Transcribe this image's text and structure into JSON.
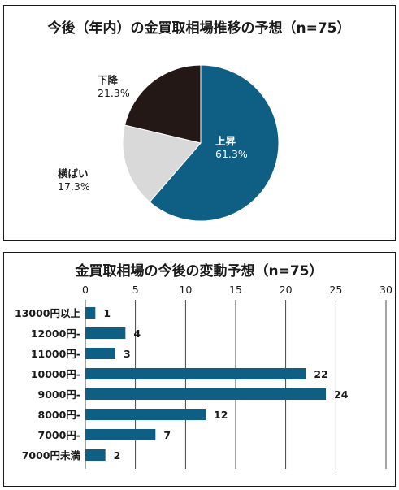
{
  "chart_data": [
    {
      "type": "pie",
      "title": "今後（年内）の金買取相場推移の予想（n=75）",
      "slices": [
        {
          "label": "上昇",
          "value": 61.3,
          "value_label": "61.3%",
          "color": "#0f5f84",
          "text_color": "#ffffff"
        },
        {
          "label": "横ばい",
          "value": 17.3,
          "value_label": "17.3%",
          "color": "#d9d9d9",
          "text_color": "#1a1a1a"
        },
        {
          "label": "下降",
          "value": 21.3,
          "value_label": "21.3%",
          "color": "#231815",
          "text_color": "#1a1a1a"
        }
      ]
    },
    {
      "type": "bar",
      "orientation": "horizontal",
      "title": "金買取相場の今後の変動予想（n=75）",
      "categories": [
        "13000円以上",
        "12000円-",
        "11000円-",
        "10000円-",
        "9000円-",
        "8000円-",
        "7000円-",
        "7000円未満"
      ],
      "values": [
        1,
        4,
        3,
        22,
        24,
        12,
        7,
        2
      ],
      "value_labels": [
        "1",
        "4",
        "3",
        "22",
        "24",
        "12",
        "7",
        "2"
      ],
      "xlim": [
        0,
        30
      ],
      "x_ticks": [
        0,
        5,
        10,
        15,
        20,
        25,
        30
      ],
      "x_tick_labels": [
        "0",
        "5",
        "10",
        "15",
        "20",
        "25",
        "30"
      ],
      "grid": true,
      "bar_color": "#0f5f84"
    }
  ]
}
